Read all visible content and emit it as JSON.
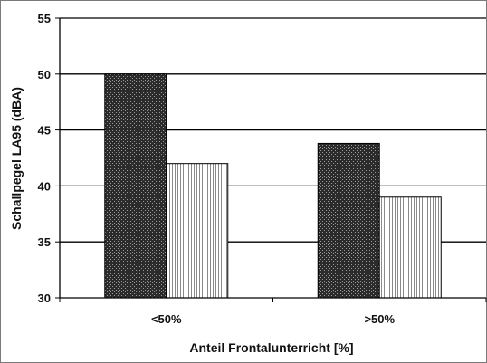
{
  "chart_data": {
    "type": "bar",
    "categories": [
      "<50%",
      ">50%"
    ],
    "series": [
      {
        "pattern": "dark-crosshatch",
        "values": [
          50,
          43.8
        ]
      },
      {
        "pattern": "light-vertical-stripes",
        "values": [
          42,
          39
        ]
      }
    ],
    "xlabel": "Anteil Frontalunterricht [%]",
    "ylabel": "Schallpegel LA95 (dBA)",
    "ylim": [
      30,
      55
    ],
    "yticks": [
      30,
      35,
      40,
      45,
      50,
      55
    ],
    "grid": true,
    "legend": "none"
  }
}
